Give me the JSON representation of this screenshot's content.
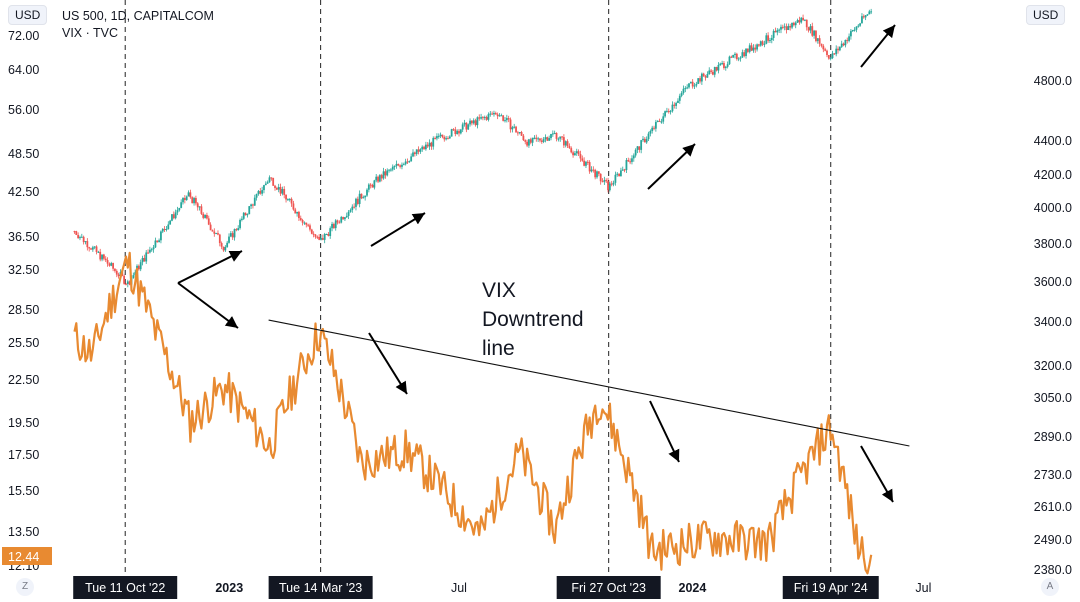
{
  "header": {
    "symbol_line": "US 500, 1D, CAPITALCOM",
    "vix_line": "VIX · TVC",
    "left_currency": "USD",
    "right_currency": "USD"
  },
  "corner": {
    "left": "Z",
    "right": "A"
  },
  "vix_current_label": "12.44",
  "annotation": {
    "lines": [
      "VIX",
      "Downtrend",
      "line"
    ]
  },
  "colors": {
    "candle_up": "#26a69a",
    "candle_down": "#ef5350",
    "vix_line": "#e88a31",
    "arrow": "#000000"
  },
  "chart_data": {
    "type": "line",
    "title": "US 500, 1D, CAPITALCOM",
    "xlabel": "",
    "ylabel": "",
    "left_axis": {
      "label": "USD",
      "ticks": [
        "72.00",
        "64.00",
        "56.00",
        "48.50",
        "42.50",
        "36.50",
        "32.50",
        "28.50",
        "25.50",
        "22.50",
        "19.50",
        "17.50",
        "15.50",
        "13.50",
        "12.10"
      ],
      "scale": "log"
    },
    "right_axis": {
      "label": "USD",
      "ticks": [
        "4800.0",
        "4400.0",
        "4200.0",
        "4000.0",
        "3800.0",
        "3600.0",
        "3400.0",
        "3200.0",
        "3050.0",
        "2890.0",
        "2730.0",
        "2610.0",
        "2490.0",
        "2380.0"
      ],
      "scale": "log"
    },
    "x_ticks": [
      "2023",
      "Jul",
      "2024",
      "Jul"
    ],
    "x_markers": [
      "Tue 11 Oct '22",
      "Tue 14 Mar '23",
      "Fri 27 Oct '23",
      "Fri 19 Apr '24"
    ],
    "series": [
      {
        "name": "US 500, 1D, CAPITALCOM",
        "type": "candlestick",
        "axis": "right",
        "points": [
          [
            "2022-09-01",
            3870
          ],
          [
            "2022-10-13",
            3590
          ],
          [
            "2022-11-30",
            4080
          ],
          [
            "2022-12-28",
            3780
          ],
          [
            "2023-02-02",
            4180
          ],
          [
            "2023-03-13",
            3810
          ],
          [
            "2023-04-28",
            4170
          ],
          [
            "2023-06-15",
            4420
          ],
          [
            "2023-07-31",
            4590
          ],
          [
            "2023-08-25",
            4390
          ],
          [
            "2023-09-15",
            4450
          ],
          [
            "2023-10-27",
            4120
          ],
          [
            "2023-12-29",
            4770
          ],
          [
            "2024-03-28",
            5250
          ],
          [
            "2024-04-19",
            4960
          ],
          [
            "2024-05-21",
            5320
          ]
        ]
      },
      {
        "name": "VIX · TVC",
        "type": "line",
        "axis": "left",
        "points": [
          [
            "2022-09-01",
            26.0
          ],
          [
            "2022-09-15",
            24.5
          ],
          [
            "2022-10-13",
            33.6
          ],
          [
            "2022-11-04",
            26.5
          ],
          [
            "2022-12-01",
            19.5
          ],
          [
            "2022-12-28",
            22.0
          ],
          [
            "2023-02-02",
            17.9
          ],
          [
            "2023-03-13",
            26.5
          ],
          [
            "2023-04-15",
            17.0
          ],
          [
            "2023-05-20",
            17.8
          ],
          [
            "2023-07-18",
            13.3
          ],
          [
            "2023-08-18",
            17.6
          ],
          [
            "2023-09-15",
            13.5
          ],
          [
            "2023-10-20",
            21.3
          ],
          [
            "2023-11-30",
            12.6
          ],
          [
            "2024-01-15",
            13.2
          ],
          [
            "2024-03-01",
            13.0
          ],
          [
            "2024-04-19",
            19.2
          ],
          [
            "2024-05-10",
            12.8
          ],
          [
            "2024-05-21",
            12.44
          ]
        ]
      }
    ],
    "trendline": {
      "label": "VIX Downtrend line",
      "from": [
        "2023-02-01",
        27.6
      ],
      "to": [
        "2024-06-20",
        18.0
      ]
    },
    "current_value": "12.44",
    "grid": false,
    "legend": "top-left"
  }
}
